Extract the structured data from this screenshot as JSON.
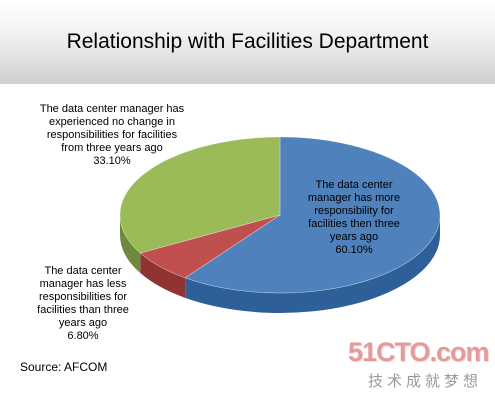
{
  "chart_data": {
    "type": "pie",
    "title": "Relationship with Facilities Department",
    "slices": [
      {
        "name": "more",
        "lines": [
          "The data center",
          "manager has more",
          "responsibility for",
          "facilities then three",
          "years ago"
        ],
        "value": 60.1,
        "value_label": "60.10%",
        "color": "#4f81bd",
        "side_color": "#2f5f99"
      },
      {
        "name": "less",
        "lines": [
          "The data center",
          "manager has less",
          "responsibilities for",
          "facilities than three",
          "years ago"
        ],
        "value": 6.8,
        "value_label": "6.80%",
        "color": "#c0504d",
        "side_color": "#8f3432"
      },
      {
        "name": "nochange",
        "lines": [
          "The data center manager has",
          "experienced no change in",
          "responsibilities for facilities",
          "from three years ago"
        ],
        "value": 33.1,
        "value_label": "33.10%",
        "color": "#9bbb59",
        "side_color": "#6f8a3c"
      }
    ],
    "source": "Source: AFCOM"
  },
  "watermark": {
    "logo": "51CTO.com",
    "tagline": "技术成就梦想"
  }
}
